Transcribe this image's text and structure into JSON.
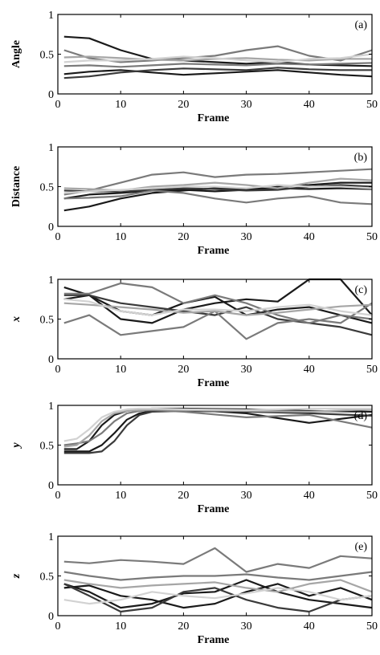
{
  "colors": {
    "black": "#1a1a1a",
    "dark": "#3a3a3a",
    "mid": "#7a7a7a",
    "light": "#a6a6a6",
    "pale": "#d2d2d2"
  },
  "chart_data": [
    {
      "type": "line",
      "panel_label": "(a)",
      "xlabel": "Frame",
      "ylabel": "Angle",
      "xlim": [
        0,
        50
      ],
      "ylim": [
        0,
        1
      ],
      "xticks": [
        "0",
        "10",
        "20",
        "30",
        "40",
        "50"
      ],
      "yticks": [
        "0",
        "0.5",
        "1"
      ],
      "x": [
        1,
        5,
        10,
        15,
        20,
        25,
        30,
        35,
        40,
        45,
        50
      ],
      "series": [
        {
          "color": "black",
          "values": [
            0.72,
            0.7,
            0.55,
            0.44,
            0.42,
            0.4,
            0.38,
            0.4,
            0.37,
            0.36,
            0.35
          ]
        },
        {
          "color": "black",
          "values": [
            0.25,
            0.28,
            0.3,
            0.27,
            0.24,
            0.26,
            0.28,
            0.3,
            0.27,
            0.24,
            0.22
          ]
        },
        {
          "color": "dark",
          "values": [
            0.2,
            0.22,
            0.27,
            0.3,
            0.32,
            0.31,
            0.3,
            0.33,
            0.31,
            0.3,
            0.3
          ]
        },
        {
          "color": "mid",
          "values": [
            0.55,
            0.45,
            0.4,
            0.42,
            0.45,
            0.48,
            0.55,
            0.6,
            0.48,
            0.42,
            0.55
          ]
        },
        {
          "color": "light",
          "values": [
            0.46,
            0.47,
            0.45,
            0.43,
            0.42,
            0.44,
            0.45,
            0.43,
            0.42,
            0.44,
            0.44
          ]
        },
        {
          "color": "pale",
          "values": [
            0.4,
            0.42,
            0.42,
            0.44,
            0.47,
            0.45,
            0.42,
            0.4,
            0.44,
            0.45,
            0.5
          ]
        },
        {
          "color": "mid",
          "values": [
            0.35,
            0.36,
            0.34,
            0.36,
            0.38,
            0.37,
            0.36,
            0.38,
            0.37,
            0.38,
            0.39
          ]
        }
      ]
    },
    {
      "type": "line",
      "panel_label": "(b)",
      "xlabel": "Frame",
      "ylabel": "Distance",
      "xlim": [
        0,
        50
      ],
      "ylim": [
        0,
        1
      ],
      "xticks": [
        "0",
        "10",
        "20",
        "30",
        "40",
        "50"
      ],
      "yticks": [
        "0",
        "0.5",
        "1"
      ],
      "x": [
        1,
        5,
        10,
        15,
        20,
        25,
        30,
        35,
        40,
        45,
        50
      ],
      "series": [
        {
          "color": "black",
          "values": [
            0.2,
            0.25,
            0.35,
            0.42,
            0.45,
            0.48,
            0.47,
            0.5,
            0.52,
            0.55,
            0.55
          ]
        },
        {
          "color": "black",
          "values": [
            0.35,
            0.4,
            0.42,
            0.45,
            0.46,
            0.44,
            0.46,
            0.48,
            0.47,
            0.48,
            0.47
          ]
        },
        {
          "color": "dark",
          "values": [
            0.45,
            0.44,
            0.44,
            0.46,
            0.48,
            0.47,
            0.45,
            0.46,
            0.5,
            0.52,
            0.5
          ]
        },
        {
          "color": "mid",
          "values": [
            0.4,
            0.45,
            0.55,
            0.65,
            0.68,
            0.62,
            0.65,
            0.66,
            0.68,
            0.7,
            0.72
          ]
        },
        {
          "color": "mid",
          "values": [
            0.35,
            0.36,
            0.38,
            0.45,
            0.42,
            0.35,
            0.3,
            0.35,
            0.38,
            0.3,
            0.28
          ]
        },
        {
          "color": "light",
          "values": [
            0.48,
            0.47,
            0.45,
            0.5,
            0.52,
            0.55,
            0.52,
            0.48,
            0.55,
            0.6,
            0.58
          ]
        },
        {
          "color": "pale",
          "values": [
            0.42,
            0.44,
            0.46,
            0.48,
            0.5,
            0.5,
            0.48,
            0.52,
            0.5,
            0.5,
            0.48
          ]
        }
      ]
    },
    {
      "type": "line",
      "panel_label": "(c)",
      "xlabel": "Frame",
      "ylabel": "x",
      "xlim": [
        0,
        50
      ],
      "ylim": [
        0,
        1
      ],
      "xticks": [
        "0",
        "10",
        "20",
        "30",
        "40",
        "50"
      ],
      "yticks": [
        "0",
        "0.5",
        "1"
      ],
      "x": [
        1,
        5,
        10,
        15,
        20,
        25,
        30,
        35,
        40,
        45,
        50
      ],
      "series": [
        {
          "color": "black",
          "values": [
            0.9,
            0.8,
            0.5,
            0.45,
            0.62,
            0.7,
            0.75,
            0.72,
            1.0,
            1.0,
            0.55
          ]
        },
        {
          "color": "black",
          "values": [
            0.75,
            0.8,
            0.6,
            0.55,
            0.7,
            0.78,
            0.55,
            0.62,
            0.65,
            0.55,
            0.45
          ]
        },
        {
          "color": "dark",
          "values": [
            0.8,
            0.8,
            0.7,
            0.65,
            0.6,
            0.55,
            0.65,
            0.5,
            0.45,
            0.4,
            0.3
          ]
        },
        {
          "color": "mid",
          "values": [
            0.45,
            0.55,
            0.3,
            0.35,
            0.4,
            0.6,
            0.25,
            0.45,
            0.5,
            0.45,
            0.7
          ]
        },
        {
          "color": "mid",
          "values": [
            0.82,
            0.82,
            0.95,
            0.9,
            0.7,
            0.8,
            0.7,
            0.55,
            0.45,
            0.55,
            0.5
          ]
        },
        {
          "color": "light",
          "values": [
            0.7,
            0.68,
            0.65,
            0.62,
            0.58,
            0.6,
            0.55,
            0.58,
            0.62,
            0.66,
            0.68
          ]
        },
        {
          "color": "pale",
          "values": [
            0.75,
            0.72,
            0.6,
            0.55,
            0.62,
            0.62,
            0.6,
            0.65,
            0.68,
            0.6,
            0.55
          ]
        }
      ]
    },
    {
      "type": "line",
      "panel_label": "(d)",
      "xlabel": "Frame",
      "ylabel": "y",
      "xlim": [
        0,
        50
      ],
      "ylim": [
        0,
        1
      ],
      "xticks": [
        "0",
        "10",
        "20",
        "30",
        "40",
        "50"
      ],
      "yticks": [
        "0",
        "0.5",
        "1"
      ],
      "x": [
        1,
        3,
        5,
        7,
        9,
        11,
        13,
        15,
        20,
        30,
        40,
        50
      ],
      "series": [
        {
          "color": "black",
          "values": [
            0.45,
            0.45,
            0.55,
            0.75,
            0.88,
            0.93,
            0.95,
            0.96,
            0.96,
            0.95,
            0.93,
            0.92
          ]
        },
        {
          "color": "black",
          "values": [
            0.42,
            0.42,
            0.42,
            0.5,
            0.65,
            0.82,
            0.9,
            0.93,
            0.95,
            0.9,
            0.78,
            0.88
          ]
        },
        {
          "color": "dark",
          "values": [
            0.4,
            0.4,
            0.4,
            0.42,
            0.55,
            0.75,
            0.88,
            0.92,
            0.93,
            0.92,
            0.9,
            0.87
          ]
        },
        {
          "color": "mid",
          "values": [
            0.5,
            0.52,
            0.55,
            0.65,
            0.8,
            0.9,
            0.93,
            0.94,
            0.92,
            0.85,
            0.88,
            0.72
          ]
        },
        {
          "color": "light",
          "values": [
            0.48,
            0.5,
            0.62,
            0.8,
            0.9,
            0.93,
            0.94,
            0.95,
            0.94,
            0.93,
            0.92,
            0.95
          ]
        },
        {
          "color": "pale",
          "values": [
            0.55,
            0.58,
            0.7,
            0.85,
            0.92,
            0.95,
            0.96,
            0.96,
            0.95,
            0.94,
            0.96,
            0.96
          ]
        }
      ]
    },
    {
      "type": "line",
      "panel_label": "(e)",
      "xlabel": "Frame",
      "ylabel": "z",
      "xlim": [
        0,
        50
      ],
      "ylim": [
        0,
        1
      ],
      "xticks": [
        "0",
        "10",
        "20",
        "30",
        "40",
        "50"
      ],
      "yticks": [
        "0",
        "0.5",
        "1"
      ],
      "x": [
        1,
        5,
        10,
        15,
        20,
        25,
        30,
        35,
        40,
        45,
        50
      ],
      "series": [
        {
          "color": "mid",
          "values": [
            0.68,
            0.66,
            0.7,
            0.68,
            0.65,
            0.85,
            0.55,
            0.65,
            0.6,
            0.75,
            0.72
          ]
        },
        {
          "color": "mid",
          "values": [
            0.55,
            0.5,
            0.45,
            0.48,
            0.5,
            0.5,
            0.52,
            0.48,
            0.45,
            0.5,
            0.55
          ]
        },
        {
          "color": "black",
          "values": [
            0.4,
            0.3,
            0.1,
            0.15,
            0.28,
            0.3,
            0.45,
            0.3,
            0.2,
            0.15,
            0.1
          ]
        },
        {
          "color": "black",
          "values": [
            0.35,
            0.38,
            0.25,
            0.2,
            0.1,
            0.15,
            0.3,
            0.4,
            0.25,
            0.35,
            0.2
          ]
        },
        {
          "color": "dark",
          "values": [
            0.4,
            0.25,
            0.05,
            0.1,
            0.3,
            0.35,
            0.2,
            0.1,
            0.05,
            0.2,
            0.25
          ]
        },
        {
          "color": "light",
          "values": [
            0.45,
            0.4,
            0.35,
            0.38,
            0.4,
            0.42,
            0.35,
            0.3,
            0.4,
            0.45,
            0.3
          ]
        },
        {
          "color": "pale",
          "values": [
            0.2,
            0.15,
            0.2,
            0.3,
            0.25,
            0.22,
            0.28,
            0.35,
            0.3,
            0.2,
            0.25
          ]
        }
      ]
    }
  ]
}
